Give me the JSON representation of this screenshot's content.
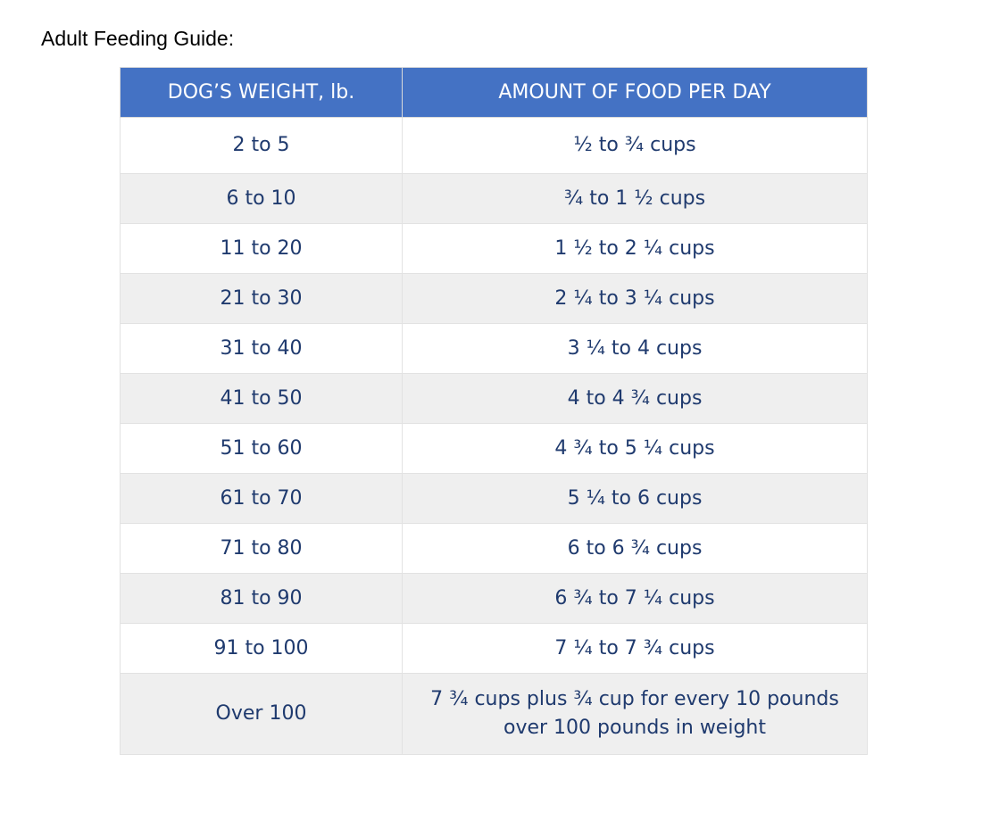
{
  "title": "Adult Feeding Guide:",
  "table": {
    "headers": {
      "weight": "DOG’S WEIGHT, lb.",
      "amount": "AMOUNT OF FOOD PER DAY"
    },
    "rows": [
      {
        "weight": "2 to 5",
        "amount": "½ to ¾ cups"
      },
      {
        "weight": "6 to 10",
        "amount": "¾ to 1 ½ cups"
      },
      {
        "weight": "11 to 20",
        "amount": "1 ½ to 2 ¼ cups"
      },
      {
        "weight": "21 to 30",
        "amount": "2 ¼ to 3 ¼ cups"
      },
      {
        "weight": "31 to 40",
        "amount": "3 ¼ to 4 cups"
      },
      {
        "weight": "41 to 50",
        "amount": "4 to 4 ¾ cups"
      },
      {
        "weight": "51 to 60",
        "amount": "4 ¾ to 5 ¼ cups"
      },
      {
        "weight": "61 to 70",
        "amount": "5 ¼ to 6 cups"
      },
      {
        "weight": "71 to 80",
        "amount": "6 to 6 ¾ cups"
      },
      {
        "weight": "81 to 90",
        "amount": "6 ¾ to 7 ¼ cups"
      },
      {
        "weight": "91 to 100",
        "amount": "7 ¼ to 7 ¾ cups"
      },
      {
        "weight": "Over 100",
        "amount_line1": "7 ¾ cups plus ¾ cup for every 10 pounds",
        "amount_line2": "over 100 pounds in weight"
      }
    ]
  },
  "colors": {
    "header_background": "#4472c4",
    "header_text": "#ffffff",
    "body_text": "#1f3a6e",
    "stripe": "#efefef"
  }
}
